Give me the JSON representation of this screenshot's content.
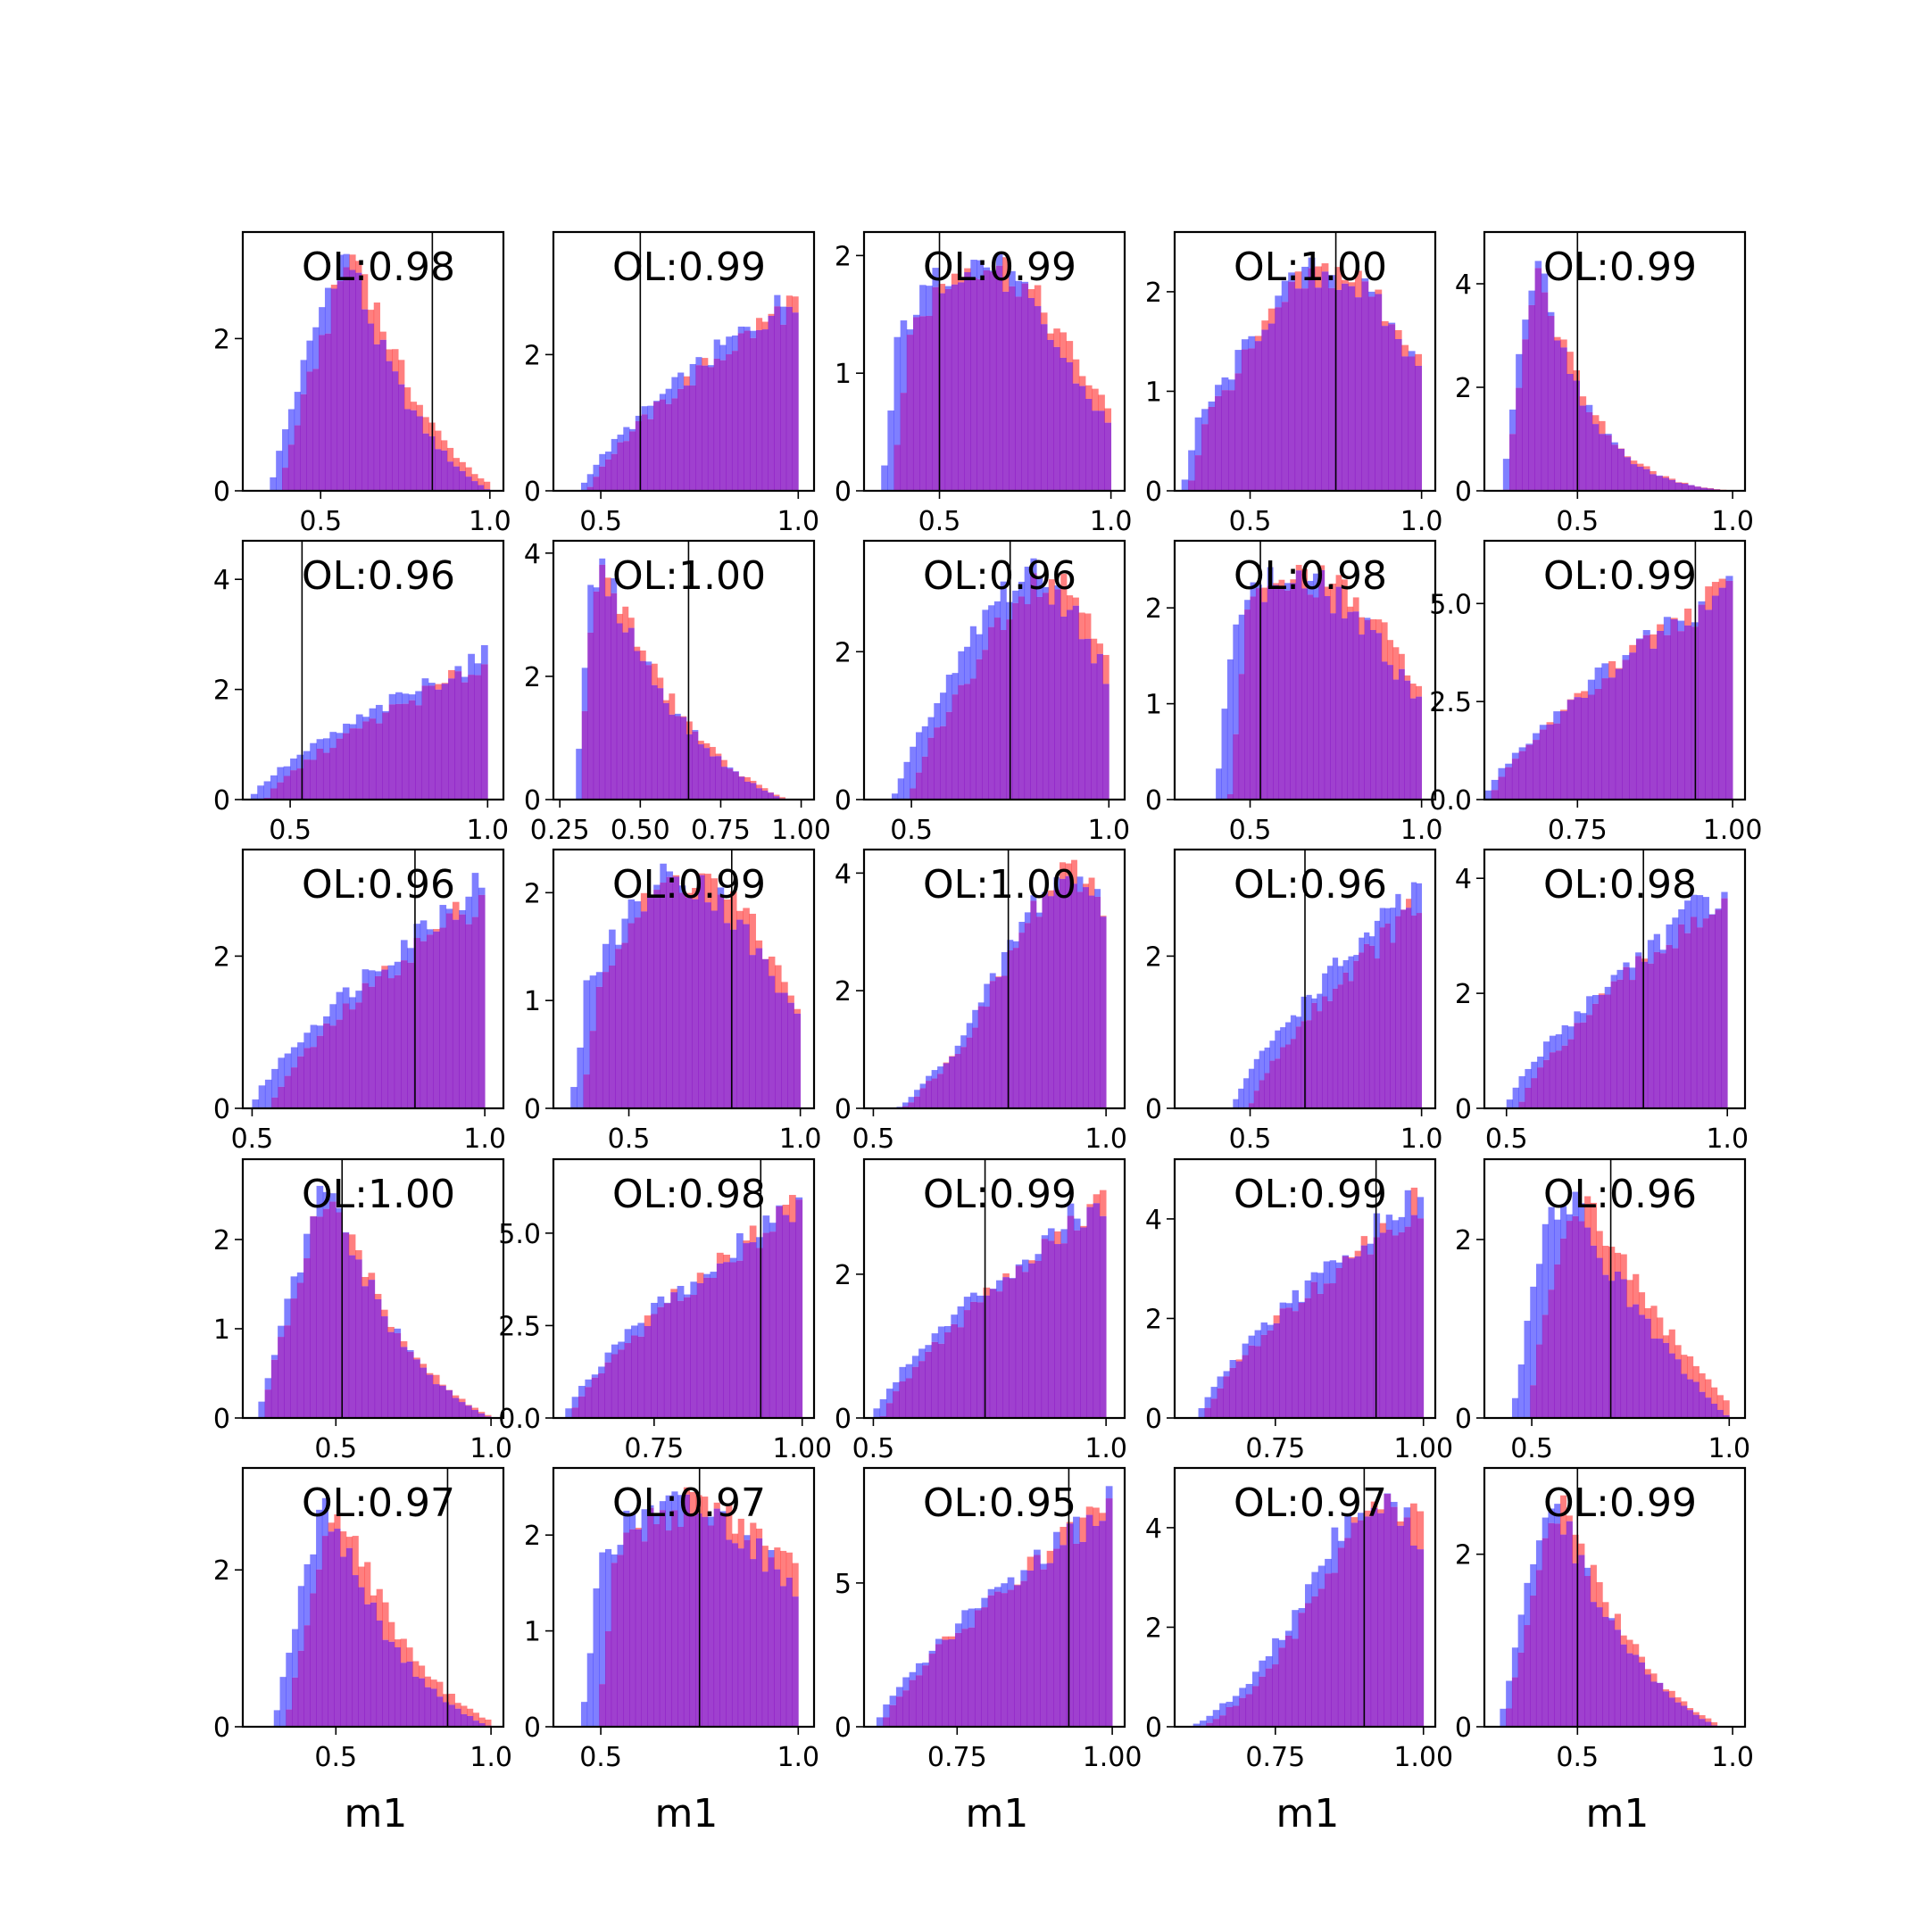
{
  "colors": {
    "red": "#ff0000",
    "blue": "#0000ff",
    "overlap": "#7f00bf",
    "refline": "#000000",
    "frame": "#000000"
  },
  "shared_xlabel": "m1",
  "chart_data": [
    {
      "type": "histogram",
      "ol_label": "OL:0.98",
      "xlim": [
        0.27,
        1.04
      ],
      "ylim": [
        0,
        3.4
      ],
      "xticks": [
        0.5,
        1.0
      ],
      "xtick_labels": [
        "0.5",
        "1.0"
      ],
      "yticks": [
        0,
        2
      ],
      "ytick_labels": [
        "0",
        "2"
      ],
      "dist": {
        "kind": "skew",
        "range": [
          0.35,
          1.0
        ],
        "peak": 0.55,
        "height": 3.05,
        "tail": 1.6
      },
      "shift": 0.03,
      "vline": 0.83
    },
    {
      "type": "histogram",
      "ol_label": "OL:0.99",
      "xlim": [
        0.38,
        1.04
      ],
      "ylim": [
        0,
        3.8
      ],
      "xticks": [
        0.5,
        1.0
      ],
      "xtick_labels": [
        "0.5",
        "1.0"
      ],
      "yticks": [
        0,
        2
      ],
      "ytick_labels": [
        "0",
        "2"
      ],
      "dist": {
        "kind": "rise",
        "range": [
          0.45,
          1.0
        ],
        "height": 2.9
      },
      "shift": 0.02,
      "vline": 0.6
    },
    {
      "type": "histogram",
      "ol_label": "OL:0.99",
      "xlim": [
        0.28,
        1.04
      ],
      "ylim": [
        0,
        2.2
      ],
      "xticks": [
        0.5,
        1.0
      ],
      "xtick_labels": [
        "0.5",
        "1.0"
      ],
      "yticks": [
        0,
        1,
        2
      ],
      "ytick_labels": [
        "0",
        "1",
        "2"
      ],
      "dist": {
        "kind": "bell",
        "range": [
          0.33,
          1.0
        ],
        "peak": 0.6,
        "height": 1.95,
        "width": 0.25
      },
      "shift": 0.03,
      "vline": 0.5
    },
    {
      "type": "histogram",
      "ol_label": "OL:1.00",
      "xlim": [
        0.28,
        1.04
      ],
      "ylim": [
        0,
        2.6
      ],
      "xticks": [
        0.5,
        1.0
      ],
      "xtick_labels": [
        "0.5",
        "1.0"
      ],
      "yticks": [
        0,
        1,
        2
      ],
      "ytick_labels": [
        "0",
        "1",
        "2"
      ],
      "dist": {
        "kind": "bell",
        "range": [
          0.3,
          1.0
        ],
        "peak": 0.72,
        "height": 2.2,
        "width": 0.25
      },
      "shift": 0.02,
      "vline": 0.75
    },
    {
      "type": "histogram",
      "ol_label": "OL:0.99",
      "xlim": [
        0.2,
        1.04
      ],
      "ylim": [
        0,
        5.0
      ],
      "xticks": [
        0.5,
        1.0
      ],
      "xtick_labels": [
        "0.5",
        "1.0"
      ],
      "yticks": [
        0,
        2,
        4
      ],
      "ytick_labels": [
        "0",
        "2",
        "4"
      ],
      "dist": {
        "kind": "skew",
        "range": [
          0.26,
          1.0
        ],
        "peak": 0.35,
        "height": 4.2,
        "tail": 2.8
      },
      "shift": 0.01,
      "vline": 0.5
    },
    {
      "type": "histogram",
      "ol_label": "OL:0.96",
      "xlim": [
        0.38,
        1.04
      ],
      "ylim": [
        0,
        4.7
      ],
      "xticks": [
        0.5,
        1.0
      ],
      "xtick_labels": [
        "0.5",
        "1.0"
      ],
      "yticks": [
        0,
        2,
        4
      ],
      "ytick_labels": [
        "0",
        "2",
        "4"
      ],
      "dist": {
        "kind": "rise",
        "range": [
          0.4,
          1.0
        ],
        "height": 2.6
      },
      "shift": 0.04,
      "vline": 0.53
    },
    {
      "type": "histogram",
      "ol_label": "OL:1.00",
      "xlim": [
        0.23,
        1.04
      ],
      "ylim": [
        0,
        4.2
      ],
      "xticks": [
        0.25,
        0.5,
        0.75,
        1.0
      ],
      "xtick_labels": [
        "0.25",
        "0.50",
        "0.75",
        "1.00"
      ],
      "yticks": [
        0,
        2,
        4
      ],
      "ytick_labels": [
        "0",
        "2",
        "4"
      ],
      "dist": {
        "kind": "skew",
        "range": [
          0.3,
          0.95
        ],
        "peak": 0.35,
        "height": 3.6,
        "tail": 1.3
      },
      "shift": 0.01,
      "vline": 0.65
    },
    {
      "type": "histogram",
      "ol_label": "OL:0.96",
      "xlim": [
        0.38,
        1.04
      ],
      "ylim": [
        0,
        3.5
      ],
      "xticks": [
        0.5,
        1.0
      ],
      "xtick_labels": [
        "0.5",
        "1.0"
      ],
      "yticks": [
        0,
        2
      ],
      "ytick_labels": [
        "0",
        "2"
      ],
      "dist": {
        "kind": "bell",
        "range": [
          0.45,
          1.0
        ],
        "peak": 0.8,
        "height": 3.0,
        "width": 0.18
      },
      "shift": 0.04,
      "vline": 0.75
    },
    {
      "type": "histogram",
      "ol_label": "OL:0.98",
      "xlim": [
        0.28,
        1.04
      ],
      "ylim": [
        0,
        2.7
      ],
      "xticks": [
        0.5,
        1.0
      ],
      "xtick_labels": [
        "0.5",
        "1.0"
      ],
      "yticks": [
        0,
        1,
        2
      ],
      "ytick_labels": [
        "0",
        "1",
        "2"
      ],
      "dist": {
        "kind": "bell",
        "range": [
          0.4,
          1.0
        ],
        "peak": 0.62,
        "height": 2.3,
        "width": 0.3
      },
      "shift": 0.04,
      "vline": 0.53
    },
    {
      "type": "histogram",
      "ol_label": "OL:0.99",
      "xlim": [
        0.6,
        1.02
      ],
      "ylim": [
        0,
        6.6
      ],
      "xticks": [
        0.75,
        1.0
      ],
      "xtick_labels": [
        "0.75",
        "1.00"
      ],
      "yticks": [
        0,
        2.5,
        5
      ],
      "ytick_labels": [
        "0.0",
        "2.5",
        "5.0"
      ],
      "dist": {
        "kind": "rise",
        "range": [
          0.6,
          1.0
        ],
        "height": 5.6
      },
      "shift": 0.01,
      "vline": 0.94
    },
    {
      "type": "histogram",
      "ol_label": "OL:0.96",
      "xlim": [
        0.48,
        1.04
      ],
      "ylim": [
        0,
        3.4
      ],
      "xticks": [
        0.5,
        1.0
      ],
      "xtick_labels": [
        "0.5",
        "1.0"
      ],
      "yticks": [
        0,
        2
      ],
      "ytick_labels": [
        "0",
        "2"
      ],
      "dist": {
        "kind": "rise",
        "range": [
          0.5,
          1.0
        ],
        "height": 3.0
      },
      "shift": 0.04,
      "vline": 0.85
    },
    {
      "type": "histogram",
      "ol_label": "OL:0.99",
      "xlim": [
        0.28,
        1.04
      ],
      "ylim": [
        0,
        2.4
      ],
      "xticks": [
        0.5,
        1.0
      ],
      "xtick_labels": [
        "0.5",
        "1.0"
      ],
      "yticks": [
        0,
        1,
        2
      ],
      "ytick_labels": [
        "0",
        "1",
        "2"
      ],
      "dist": {
        "kind": "bell",
        "range": [
          0.33,
          1.0
        ],
        "peak": 0.65,
        "height": 2.15,
        "width": 0.25
      },
      "shift": 0.03,
      "vline": 0.8
    },
    {
      "type": "histogram",
      "ol_label": "OL:1.00",
      "xlim": [
        0.48,
        1.04
      ],
      "ylim": [
        0,
        4.4
      ],
      "xticks": [
        0.5,
        1.0
      ],
      "xtick_labels": [
        "0.5",
        "1.0"
      ],
      "yticks": [
        0,
        2,
        4
      ],
      "ytick_labels": [
        "0",
        "2",
        "4"
      ],
      "dist": {
        "kind": "bell",
        "range": [
          0.55,
          1.0
        ],
        "peak": 0.92,
        "height": 3.9,
        "width": 0.15
      },
      "shift": 0.01,
      "vline": 0.79
    },
    {
      "type": "histogram",
      "ol_label": "OL:0.96",
      "xlim": [
        0.28,
        1.04
      ],
      "ylim": [
        0,
        3.4
      ],
      "xticks": [
        0.5,
        1.0
      ],
      "xtick_labels": [
        "0.5",
        "1.0"
      ],
      "yticks": [
        0,
        2
      ],
      "ytick_labels": [
        "0",
        "2"
      ],
      "dist": {
        "kind": "rise",
        "range": [
          0.45,
          1.0
        ],
        "height": 2.9
      },
      "shift": 0.05,
      "vline": 0.66
    },
    {
      "type": "histogram",
      "ol_label": "OL:0.98",
      "xlim": [
        0.45,
        1.04
      ],
      "ylim": [
        0,
        4.5
      ],
      "xticks": [
        0.5,
        1.0
      ],
      "xtick_labels": [
        "0.5",
        "1.0"
      ],
      "yticks": [
        0,
        2,
        4
      ],
      "ytick_labels": [
        "0",
        "2",
        "4"
      ],
      "dist": {
        "kind": "rise",
        "range": [
          0.5,
          1.0
        ],
        "height": 3.9
      },
      "shift": 0.03,
      "vline": 0.81
    },
    {
      "type": "histogram",
      "ol_label": "OL:1.00",
      "xlim": [
        0.2,
        1.04
      ],
      "ylim": [
        0,
        2.9
      ],
      "xticks": [
        0.5,
        1.0
      ],
      "xtick_labels": [
        "0.5",
        "1.0"
      ],
      "yticks": [
        0,
        1,
        2
      ],
      "ytick_labels": [
        "0",
        "1",
        "2"
      ],
      "dist": {
        "kind": "skew",
        "range": [
          0.25,
          1.0
        ],
        "peak": 0.45,
        "height": 2.45,
        "tail": 1.4
      },
      "shift": 0.01,
      "vline": 0.52
    },
    {
      "type": "histogram",
      "ol_label": "OL:0.98",
      "xlim": [
        0.58,
        1.02
      ],
      "ylim": [
        0,
        7.0
      ],
      "xticks": [
        0.75,
        1.0
      ],
      "xtick_labels": [
        "0.75",
        "1.00"
      ],
      "yticks": [
        0,
        2.5,
        5
      ],
      "ytick_labels": [
        "0.0",
        "2.5",
        "5.0"
      ],
      "dist": {
        "kind": "rise",
        "range": [
          0.6,
          1.0
        ],
        "height": 6.0
      },
      "shift": 0.01,
      "vline": 0.93
    },
    {
      "type": "histogram",
      "ol_label": "OL:0.99",
      "xlim": [
        0.48,
        1.04
      ],
      "ylim": [
        0,
        3.6
      ],
      "xticks": [
        0.5,
        1.0
      ],
      "xtick_labels": [
        "0.5",
        "1.0"
      ],
      "yticks": [
        0,
        2
      ],
      "ytick_labels": [
        "0",
        "2"
      ],
      "dist": {
        "kind": "rise",
        "range": [
          0.5,
          1.0
        ],
        "height": 3.1
      },
      "shift": 0.02,
      "vline": 0.74
    },
    {
      "type": "histogram",
      "ol_label": "OL:0.99",
      "xlim": [
        0.58,
        1.02
      ],
      "ylim": [
        0,
        5.2
      ],
      "xticks": [
        0.75,
        1.0
      ],
      "xtick_labels": [
        "0.75",
        "1.00"
      ],
      "yticks": [
        0,
        2,
        4
      ],
      "ytick_labels": [
        "0",
        "2",
        "4"
      ],
      "dist": {
        "kind": "rise",
        "range": [
          0.62,
          1.0
        ],
        "height": 4.5
      },
      "shift": 0.01,
      "vline": 0.92
    },
    {
      "type": "histogram",
      "ol_label": "OL:0.96",
      "xlim": [
        0.38,
        1.04
      ],
      "ylim": [
        0,
        2.9
      ],
      "xticks": [
        0.5,
        1.0
      ],
      "xtick_labels": [
        "0.5",
        "1.0"
      ],
      "yticks": [
        0,
        2
      ],
      "ytick_labels": [
        "0",
        "2"
      ],
      "dist": {
        "kind": "skew",
        "range": [
          0.45,
          1.0
        ],
        "peak": 0.55,
        "height": 2.4,
        "tail": 0.6
      },
      "shift": 0.04,
      "vline": 0.7
    },
    {
      "type": "histogram",
      "ol_label": "OL:0.97",
      "xlim": [
        0.2,
        1.04
      ],
      "ylim": [
        0,
        3.3
      ],
      "xticks": [
        0.5,
        1.0
      ],
      "xtick_labels": [
        "0.5",
        "1.0"
      ],
      "yticks": [
        0,
        2
      ],
      "ytick_labels": [
        "0",
        "2"
      ],
      "dist": {
        "kind": "skew",
        "range": [
          0.3,
          1.0
        ],
        "peak": 0.45,
        "height": 2.7,
        "tail": 1.5
      },
      "shift": 0.04,
      "vline": 0.86
    },
    {
      "type": "histogram",
      "ol_label": "OL:0.97",
      "xlim": [
        0.38,
        1.04
      ],
      "ylim": [
        0,
        2.7
      ],
      "xticks": [
        0.5,
        1.0
      ],
      "xtick_labels": [
        "0.5",
        "1.0"
      ],
      "yticks": [
        0,
        1,
        2
      ],
      "ytick_labels": [
        "0",
        "1",
        "2"
      ],
      "dist": {
        "kind": "bell",
        "range": [
          0.45,
          1.0
        ],
        "peak": 0.7,
        "height": 2.3,
        "width": 0.3
      },
      "shift": 0.04,
      "vline": 0.75
    },
    {
      "type": "histogram",
      "ol_label": "OL:0.95",
      "xlim": [
        0.6,
        1.02
      ],
      "ylim": [
        0,
        9.0
      ],
      "xticks": [
        0.75,
        1.0
      ],
      "xtick_labels": [
        "0.75",
        "1.00"
      ],
      "yticks": [
        0,
        5
      ],
      "ytick_labels": [
        "0",
        "5"
      ],
      "dist": {
        "kind": "rise",
        "range": [
          0.62,
          1.0
        ],
        "height": 7.8
      },
      "shift": 0.01,
      "vline": 0.93
    },
    {
      "type": "histogram",
      "ol_label": "OL:0.97",
      "xlim": [
        0.58,
        1.02
      ],
      "ylim": [
        0,
        5.2
      ],
      "xticks": [
        0.75,
        1.0
      ],
      "xtick_labels": [
        "0.75",
        "1.00"
      ],
      "yticks": [
        0,
        2,
        4
      ],
      "ytick_labels": [
        "0",
        "2",
        "4"
      ],
      "dist": {
        "kind": "bell",
        "range": [
          0.6,
          1.0
        ],
        "peak": 0.92,
        "height": 4.5,
        "width": 0.12
      },
      "shift": 0.02,
      "vline": 0.9
    },
    {
      "type": "histogram",
      "ol_label": "OL:0.99",
      "xlim": [
        0.2,
        1.04
      ],
      "ylim": [
        0,
        3.0
      ],
      "xticks": [
        0.5,
        1.0
      ],
      "xtick_labels": [
        "0.5",
        "1.0"
      ],
      "yticks": [
        0,
        2
      ],
      "ytick_labels": [
        "0",
        "2"
      ],
      "dist": {
        "kind": "skew",
        "range": [
          0.25,
          0.95
        ],
        "peak": 0.4,
        "height": 2.5,
        "tail": 1.3
      },
      "shift": 0.02,
      "vline": 0.5
    }
  ]
}
